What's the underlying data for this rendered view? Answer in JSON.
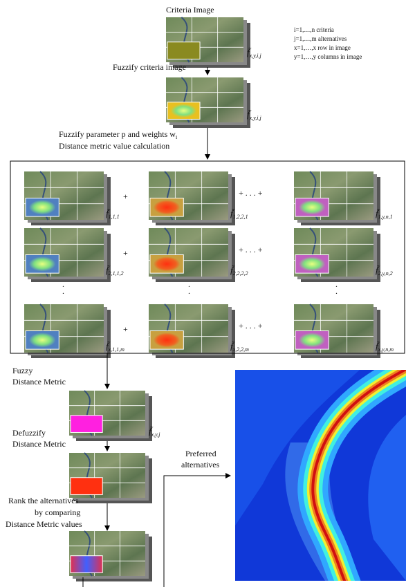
{
  "header": {
    "title": "Criteria Image"
  },
  "legend": [
    "i=1,…,n  criteria",
    "j=1,…,m  alternatives",
    "x=1,…,x  row in image",
    "y=1,…,y  columns in image"
  ],
  "steps": {
    "fuzzify": "Fuzzify criteria image",
    "params": [
      "Fuzzify parameter p and weights w",
      "i"
    ],
    "calc": "Distance metric value calculation",
    "fuzzy_dm": [
      "Fuzzy",
      "Distance Metric"
    ],
    "defuzzify": [
      "Defuzzify",
      "Distance Metric"
    ],
    "rank": [
      "Rank the alternatives",
      "by comparing",
      "Distance Metric values"
    ],
    "preferred": [
      "Preferred",
      "alternatives"
    ]
  },
  "labels": {
    "top1": {
      "f": "f̃",
      "sub": "x,y,i,j"
    },
    "top2": {
      "f": "f̃",
      "sub": "x,y,i,j"
    },
    "fdm": {
      "f": "f̃",
      "sub": "x,y,j"
    }
  },
  "grid": [
    [
      {
        "f": "f̃",
        "sub": "1,1,1"
      },
      {
        "f": "f̃",
        "sub": "1,2,2,1"
      },
      {
        "f": "f̃",
        "sub": "1,y,n,1"
      }
    ],
    [
      {
        "f": "f̃",
        "sub": "2,1,1,2"
      },
      {
        "f": "f̃",
        "sub": "2,2,2,2"
      },
      {
        "f": "f̃",
        "sub": "2,y,n,2"
      }
    ],
    [
      {
        "f": "f̃",
        "sub": "x,1,1,m"
      },
      {
        "f": "f̃",
        "sub": "x,2,2,m"
      },
      {
        "f": "f̃",
        "sub": "x,y,n,m"
      }
    ]
  ],
  "ops": {
    "plus": "+",
    "more": "+ . . . +",
    "vdots": "."
  }
}
